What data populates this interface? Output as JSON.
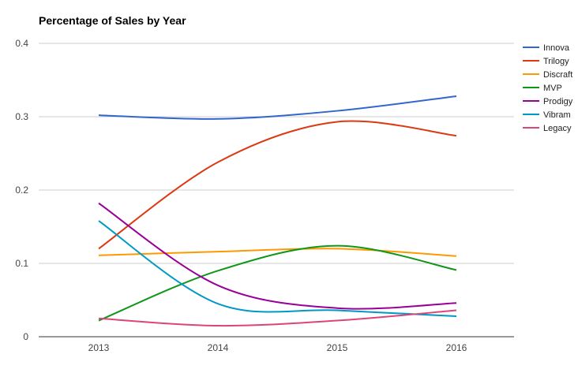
{
  "chart_data": {
    "type": "line",
    "title": "Percentage of Sales by Year",
    "xlabel": "",
    "ylabel": "",
    "categories": [
      "2013",
      "2014",
      "2015",
      "2016"
    ],
    "ylim": [
      0,
      0.4
    ],
    "yticks": [
      0,
      0.1,
      0.2,
      0.3,
      0.4
    ],
    "ytick_labels": [
      "0",
      "0.1",
      "0.2",
      "0.3",
      "0.4"
    ],
    "grid": true,
    "legend_position": "right",
    "smooth": true,
    "series": [
      {
        "name": "Innova",
        "color": "#3366cc",
        "values": [
          0.302,
          0.297,
          0.308,
          0.328
        ]
      },
      {
        "name": "Trilogy",
        "color": "#dc3912",
        "values": [
          0.12,
          0.238,
          0.293,
          0.274
        ]
      },
      {
        "name": "Discraft",
        "color": "#ff9900",
        "values": [
          0.111,
          0.116,
          0.12,
          0.11
        ]
      },
      {
        "name": "MVP",
        "color": "#109618",
        "values": [
          0.022,
          0.09,
          0.124,
          0.091
        ]
      },
      {
        "name": "Prodigy",
        "color": "#990099",
        "values": [
          0.182,
          0.07,
          0.039,
          0.046
        ]
      },
      {
        "name": "Vibram",
        "color": "#0099c6",
        "values": [
          0.158,
          0.045,
          0.036,
          0.028
        ]
      },
      {
        "name": "Legacy",
        "color": "#dd4477",
        "values": [
          0.025,
          0.015,
          0.022,
          0.036
        ]
      }
    ]
  }
}
